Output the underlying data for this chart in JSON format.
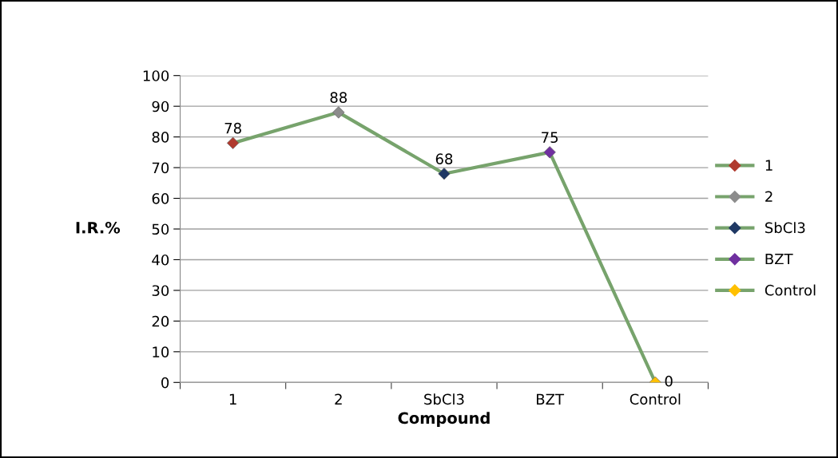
{
  "chart_data": {
    "type": "line",
    "xlabel": "Compound",
    "ylabel": "I.R.%",
    "categories": [
      "1",
      "2",
      "SbCl3",
      "BZT",
      "Control"
    ],
    "series": [
      {
        "color": "#77a36c",
        "values": [
          78,
          88,
          68,
          75,
          0
        ],
        "marker": "none"
      },
      {
        "name": "1",
        "type": "scatter",
        "color": "#b03a2e",
        "values": [
          78,
          null,
          null,
          null,
          null
        ],
        "value_labels": [
          "78",
          null,
          null,
          null,
          null
        ]
      },
      {
        "name": "2",
        "type": "scatter",
        "color": "#8c8c8c",
        "values": [
          null,
          88,
          null,
          null,
          null
        ],
        "value_labels": [
          null,
          "88",
          null,
          null,
          null
        ]
      },
      {
        "name": "SbCl3",
        "type": "scatter",
        "color": "#1f3864",
        "values": [
          null,
          null,
          68,
          null,
          null
        ],
        "value_labels": [
          null,
          null,
          "68",
          null,
          null
        ]
      },
      {
        "name": "BZT",
        "type": "scatter",
        "color": "#7030a0",
        "values": [
          null,
          null,
          null,
          75,
          null
        ],
        "value_labels": [
          null,
          null,
          null,
          "75",
          null
        ]
      },
      {
        "name": "Control",
        "type": "scatter",
        "color": "#ffc000",
        "values": [
          null,
          null,
          null,
          null,
          0
        ],
        "value_labels": [
          null,
          null,
          null,
          null,
          "0"
        ]
      }
    ],
    "ylim": [
      0,
      100
    ],
    "yticks": [
      0,
      10,
      20,
      30,
      40,
      50,
      60,
      70,
      80,
      90,
      100
    ],
    "grid": "y",
    "legend": "right",
    "marker": "diamond"
  }
}
